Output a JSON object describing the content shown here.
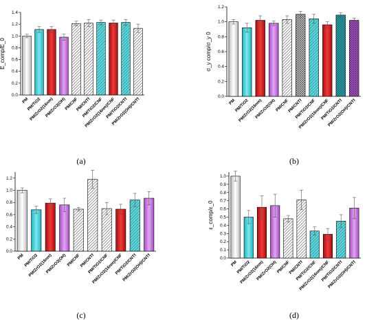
{
  "colors": {
    "white": "#f2f2f2",
    "cyan": "#3fd0d8",
    "red": "#d81d1d",
    "violet": "#c774e0",
    "hatch": "#8a8a8a",
    "cross_cyan": "#27b3bd",
    "cross_violet": "#b35ac6"
  },
  "chart_data": [
    {
      "type": "bar",
      "panel_letter": "(a)",
      "ylabel": "E_comp/E_0",
      "ylim": [
        0,
        1.4
      ],
      "yticks": [
        "0.0",
        "0.2",
        "0.4",
        "0.6",
        "0.8",
        "1.0",
        "1.2",
        "1.4"
      ],
      "categories": [
        "PM",
        "PM/TiO2",
        "PM/ZrO2(16nm)",
        "PM/ZrO2(OH)",
        "PM/CNF",
        "PM/CNTf",
        "PM/TiO2/CNF",
        "PM/ZrO2(16nm)/CNF",
        "PM/TiO2/CNTf",
        "PM/ZrO2(OH)/CNTf"
      ],
      "values": [
        1.0,
        1.11,
        1.11,
        0.98,
        1.21,
        1.22,
        1.23,
        1.22,
        1.23,
        1.13
      ],
      "errors": [
        0.03,
        0.05,
        0.05,
        0.05,
        0.04,
        0.06,
        0.04,
        0.05,
        0.05,
        0.07
      ],
      "styles": [
        "white",
        "cyan",
        "red",
        "violet",
        "hatch",
        "hatch",
        "hatch_cyan",
        "solid_red",
        "hatch_cyan",
        "hatch"
      ]
    },
    {
      "type": "bar",
      "panel_letter": "(b)",
      "ylabel": "σ_y comp/σ_y 0",
      "ylim": [
        0,
        1.2
      ],
      "yticks": [
        "0.0",
        "0.2",
        "0.4",
        "0.6",
        "0.8",
        "1.0",
        "1.2"
      ],
      "categories": [
        "PM",
        "PM/TiO2",
        "PM/ZrO2(16nm)",
        "PM/ZrO2(OH)",
        "PM/CNF",
        "PM/CNTf",
        "PM/TiO2/CNF",
        "PM/ZrO2(16nm)/CNF",
        "PM/TiO2/CNTf",
        "PM/ZrO2(OH)/CNTf"
      ],
      "values": [
        1.0,
        0.92,
        1.02,
        0.98,
        1.03,
        1.1,
        1.04,
        0.96,
        1.09,
        1.02
      ],
      "errors": [
        0.03,
        0.06,
        0.06,
        0.03,
        0.05,
        0.04,
        0.06,
        0.04,
        0.03,
        0.03
      ],
      "styles": [
        "white",
        "cyan",
        "red",
        "violet",
        "hatch",
        "cross",
        "hatch_cyan",
        "solid_red",
        "cross_cyan",
        "cross_violet"
      ]
    },
    {
      "type": "bar",
      "panel_letter": "(c)",
      "ylabel": "σ_b comp/σ_b 0",
      "ylim": [
        0,
        1.3
      ],
      "yticks": [
        "0.0",
        "0.2",
        "0.4",
        "0.6",
        "0.8",
        "1.0",
        "1.2"
      ],
      "categories": [
        "PM",
        "PM/TiO2",
        "PM/ZrO2(16nm)",
        "PM/ZrO2(OH)",
        "PM/CNF",
        "PM/CNTf",
        "PM/TiO2/CNF",
        "PM/ZrO2(16nm)/CNF",
        "PM/TiO2/CNTf",
        "PM/ZrO2(OH)/CNTf"
      ],
      "values": [
        1.0,
        0.68,
        0.79,
        0.76,
        0.69,
        1.18,
        0.7,
        0.69,
        0.84,
        0.87
      ],
      "errors": [
        0.04,
        0.06,
        0.07,
        0.11,
        0.03,
        0.15,
        0.1,
        0.08,
        0.11,
        0.11
      ],
      "styles": [
        "white",
        "cyan",
        "red",
        "violet",
        "hatch",
        "hatch",
        "hatch",
        "solid_red",
        "hatch_cyan",
        "violet"
      ]
    },
    {
      "type": "bar",
      "panel_letter": "(d)",
      "ylabel": "ε_comp/ε_0",
      "ylim": [
        0,
        1.05
      ],
      "yticks": [
        "0.0",
        "0.1",
        "0.2",
        "0.3",
        "0.4",
        "0.5",
        "0.6",
        "0.7",
        "0.8",
        "0.9",
        "1.0"
      ],
      "categories": [
        "PM",
        "PM/TiO2",
        "PM/ZrO2(16nm)",
        "PM/ZrO2(OH)",
        "PM/CNF",
        "PM/CNTf",
        "PM/TiO2/CNF",
        "PM/ZrO2(16nm)/CNF",
        "PM/TiO2/CNTf",
        "PM/ZrO2(OH)/CNTf"
      ],
      "values": [
        1.0,
        0.5,
        0.62,
        0.64,
        0.48,
        0.71,
        0.33,
        0.29,
        0.45,
        0.61
      ],
      "errors": [
        0.06,
        0.08,
        0.14,
        0.14,
        0.04,
        0.12,
        0.05,
        0.07,
        0.08,
        0.13
      ],
      "styles": [
        "white",
        "cyan",
        "red",
        "violet",
        "hatch",
        "hatch",
        "hatch_cyan",
        "solid_red",
        "hatch_cyan",
        "violet"
      ]
    }
  ]
}
